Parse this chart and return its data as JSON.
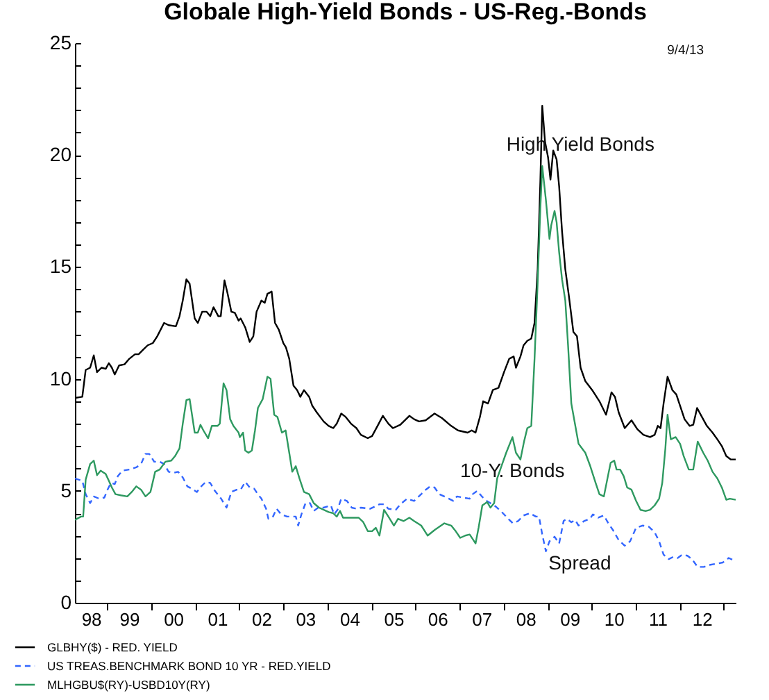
{
  "chart_data": {
    "type": "line",
    "title": "Globale High-Yield Bonds - US-Reg.-Bonds",
    "annotations": [
      "9/4/13",
      "High Yield Bonds",
      "10-Y. Bonds",
      "Spread"
    ],
    "xlim": [
      "1998-04-09",
      "2013-04-09"
    ],
    "ylim": [
      0,
      25
    ],
    "xticks": [
      {
        "value": "1998-08-20",
        "label": "98"
      },
      {
        "value": "1999-01-01",
        "label": null
      },
      {
        "value": "1999-07-02",
        "label": "99"
      },
      {
        "value": "2000-01-01",
        "label": null
      },
      {
        "value": "2000-07-02",
        "label": "00"
      },
      {
        "value": "2001-01-01",
        "label": null
      },
      {
        "value": "2001-07-02",
        "label": "01"
      },
      {
        "value": "2002-01-01",
        "label": null
      },
      {
        "value": "2002-07-02",
        "label": "02"
      },
      {
        "value": "2003-01-01",
        "label": null
      },
      {
        "value": "2003-07-02",
        "label": "03"
      },
      {
        "value": "2004-01-01",
        "label": null
      },
      {
        "value": "2004-07-02",
        "label": "04"
      },
      {
        "value": "2005-01-01",
        "label": null
      },
      {
        "value": "2005-07-02",
        "label": "05"
      },
      {
        "value": "2006-01-01",
        "label": null
      },
      {
        "value": "2006-07-02",
        "label": "06"
      },
      {
        "value": "2007-01-01",
        "label": null
      },
      {
        "value": "2007-07-02",
        "label": "07"
      },
      {
        "value": "2008-01-01",
        "label": null
      },
      {
        "value": "2008-07-02",
        "label": "08"
      },
      {
        "value": "2009-01-01",
        "label": null
      },
      {
        "value": "2009-07-02",
        "label": "09"
      },
      {
        "value": "2010-01-01",
        "label": null
      },
      {
        "value": "2010-07-02",
        "label": "10"
      },
      {
        "value": "2011-01-01",
        "label": null
      },
      {
        "value": "2011-07-02",
        "label": "11"
      },
      {
        "value": "2012-01-01",
        "label": null
      },
      {
        "value": "2012-07-02",
        "label": "12"
      },
      {
        "value": "2013-01-01",
        "label": null
      }
    ],
    "yticks": [
      0,
      {
        "value": 1,
        "label": null
      },
      {
        "value": 2,
        "label": null
      },
      {
        "value": 3,
        "label": null
      },
      {
        "value": 4,
        "label": null
      },
      5,
      {
        "value": 6,
        "label": null
      },
      {
        "value": 7,
        "label": null
      },
      {
        "value": 8,
        "label": null
      },
      {
        "value": 9,
        "label": null
      },
      10,
      {
        "value": 11,
        "label": null
      },
      {
        "value": 12,
        "label": null
      },
      {
        "value": 13,
        "label": null
      },
      {
        "value": 14,
        "label": null
      },
      15,
      {
        "value": 16,
        "label": null
      },
      {
        "value": 17,
        "label": null
      },
      {
        "value": 18,
        "label": null
      },
      {
        "value": 19,
        "label": null
      },
      20,
      {
        "value": 21,
        "label": null
      },
      {
        "value": 22,
        "label": null
      },
      {
        "value": 23,
        "label": null
      },
      {
        "value": 24,
        "label": null
      },
      25
    ],
    "legend": "bottom",
    "series": [
      {
        "name": "GLBHY($) - RED. YIELD",
        "color": "#000000",
        "x": [
          "1998-04-09",
          "1998-06-09",
          "1998-07-07",
          "1998-08-13",
          "1998-09-12",
          "1998-10-09",
          "1998-11-15",
          "1998-12-20",
          "1999-01-15",
          "1999-02-09",
          "1999-03-05",
          "1999-04-10",
          "1999-05-25",
          "1999-07-04",
          "1999-08-20",
          "1999-09-19",
          "1999-10-26",
          "1999-12-03",
          "2000-01-15",
          "2000-02-20",
          "2000-04-17",
          "2000-05-25",
          "2000-07-24",
          "2000-08-23",
          "2000-09-19",
          "2000-10-19",
          "2000-11-15",
          "2000-12-27",
          "2001-01-22",
          "2001-02-27",
          "2001-04-05",
          "2001-05-05",
          "2001-06-01",
          "2001-07-11",
          "2001-07-31",
          "2001-08-31",
          "2001-09-26",
          "2001-10-27",
          "2001-11-25",
          "2001-12-26",
          "2002-01-12",
          "2002-02-19",
          "2002-03-28",
          "2002-04-27",
          "2002-05-24",
          "2002-07-03",
          "2002-07-31",
          "2002-08-22",
          "2002-09-26",
          "2002-10-24",
          "2002-11-24",
          "2003-01-01",
          "2003-01-23",
          "2003-02-19",
          "2003-03-26",
          "2003-04-25",
          "2003-05-22",
          "2003-06-21",
          "2003-08-03",
          "2003-08-29",
          "2003-10-06",
          "2003-12-01",
          "2004-01-12",
          "2004-02-19",
          "2004-03-19",
          "2004-04-25",
          "2004-06-01",
          "2004-07-15",
          "2004-08-29",
          "2004-10-05",
          "2004-12-01",
          "2005-01-06",
          "2005-03-02",
          "2005-04-05",
          "2005-05-21",
          "2005-06-28",
          "2005-08-28",
          "2005-11-11",
          "2005-12-20",
          "2006-01-30",
          "2006-03-26",
          "2006-06-08",
          "2006-08-08",
          "2006-10-24",
          "2006-12-19",
          "2007-03-09",
          "2007-04-12",
          "2007-05-14",
          "2007-06-19",
          "2007-07-16",
          "2007-08-25",
          "2007-10-04",
          "2007-11-20",
          "2008-01-05",
          "2008-02-17",
          "2008-03-25",
          "2008-04-13",
          "2008-05-20",
          "2008-06-15",
          "2008-07-16",
          "2008-08-18",
          "2008-09-14",
          "2008-10-10",
          "2008-11-01",
          "2008-11-17",
          "2008-12-10",
          "2009-01-04",
          "2009-01-24",
          "2009-02-16",
          "2009-03-16",
          "2009-04-06",
          "2009-04-30",
          "2009-05-27",
          "2009-06-26",
          "2009-08-02",
          "2009-09-01",
          "2009-10-01",
          "2009-11-09",
          "2010-01-05",
          "2010-03-06",
          "2010-04-30",
          "2010-06-14",
          "2010-07-13",
          "2010-08-13",
          "2010-10-02",
          "2010-11-27",
          "2011-01-15",
          "2011-03-06",
          "2011-04-30",
          "2011-06-07",
          "2011-07-03",
          "2011-07-26",
          "2011-08-20",
          "2011-09-22",
          "2011-11-01",
          "2011-12-04",
          "2012-01-04",
          "2012-02-10",
          "2012-03-23",
          "2012-04-22",
          "2012-05-24",
          "2012-07-03",
          "2012-08-13",
          "2012-09-29",
          "2012-11-08",
          "2012-12-15",
          "2013-01-21",
          "2013-02-28",
          "2013-04-09"
        ],
        "values": [
          9.15,
          9.2,
          10.4,
          10.5,
          11.05,
          10.3,
          10.5,
          10.45,
          10.7,
          10.5,
          10.2,
          10.6,
          10.65,
          10.9,
          11.1,
          11.1,
          11.3,
          11.5,
          11.6,
          11.9,
          12.5,
          12.4,
          12.35,
          12.8,
          13.5,
          14.45,
          14.25,
          12.7,
          12.5,
          13.0,
          13.0,
          12.8,
          13.2,
          12.8,
          12.8,
          14.4,
          13.8,
          13.0,
          12.95,
          12.6,
          12.7,
          12.3,
          11.65,
          11.9,
          13.0,
          13.5,
          13.4,
          13.8,
          13.9,
          12.5,
          12.2,
          11.6,
          11.4,
          10.9,
          9.7,
          9.5,
          9.2,
          9.5,
          9.2,
          8.8,
          8.5,
          8.1,
          7.9,
          7.8,
          8.0,
          8.45,
          8.3,
          8.0,
          7.8,
          7.5,
          7.35,
          7.45,
          8.0,
          8.35,
          8.0,
          7.8,
          7.95,
          8.35,
          8.2,
          8.1,
          8.15,
          8.45,
          8.25,
          7.9,
          7.7,
          7.6,
          7.7,
          7.6,
          8.3,
          9.0,
          8.9,
          9.5,
          9.6,
          10.3,
          10.9,
          11.0,
          10.5,
          11.0,
          11.5,
          11.7,
          11.8,
          12.5,
          14.9,
          18.8,
          22.2,
          20.6,
          19.9,
          18.9,
          20.2,
          19.8,
          18.6,
          16.6,
          14.9,
          13.7,
          12.1,
          11.9,
          10.5,
          9.9,
          9.5,
          9.0,
          8.4,
          9.4,
          9.2,
          8.5,
          7.8,
          8.15,
          7.75,
          7.5,
          7.4,
          7.5,
          7.9,
          7.8,
          8.9,
          10.1,
          9.5,
          9.3,
          8.8,
          8.2,
          7.9,
          7.95,
          8.7,
          8.3,
          7.9,
          7.6,
          7.3,
          7.0,
          6.55,
          6.4,
          6.4
        ]
      },
      {
        "name": "US TREAS.BENCHMARK BOND 10 YR - RED.YIELD",
        "color": "#3366ff",
        "line_style": "dashed",
        "x": [
          "1998-04-09",
          "1998-06-09",
          "1998-07-07",
          "1998-08-13",
          "1998-09-12",
          "1998-10-27",
          "1998-12-09",
          "1999-01-04",
          "1999-02-01",
          "1999-03-05",
          "1999-03-30",
          "1999-05-07",
          "1999-07-04",
          "1999-08-31",
          "1999-10-09",
          "1999-11-15",
          "1999-12-16",
          "2000-01-26",
          "2000-03-11",
          "2000-04-17",
          "2000-05-25",
          "2000-07-04",
          "2000-08-11",
          "2000-09-19",
          "2000-10-27",
          "2000-12-02",
          "2001-01-14",
          "2001-02-19",
          "2001-03-29",
          "2001-05-05",
          "2001-06-12",
          "2001-08-03",
          "2001-09-17",
          "2001-10-27",
          "2001-12-10",
          "2002-01-12",
          "2002-02-19",
          "2002-03-28",
          "2002-05-04",
          "2002-06-04",
          "2002-07-03",
          "2002-08-11",
          "2002-08-30",
          "2002-10-07",
          "2002-11-06",
          "2002-12-13",
          "2003-02-01",
          "2003-04-14",
          "2003-05-04",
          "2003-05-31",
          "2003-07-04",
          "2003-08-10",
          "2003-09-10",
          "2003-10-17",
          "2003-12-01",
          "2004-01-30",
          "2004-02-26",
          "2004-03-25",
          "2004-04-25",
          "2004-06-11",
          "2004-07-21",
          "2004-08-29",
          "2004-10-05",
          "2004-12-20",
          "2005-01-30",
          "2005-03-08",
          "2005-04-15",
          "2005-05-21",
          "2005-07-21",
          "2005-08-28",
          "2005-10-24",
          "2005-12-20",
          "2006-02-17",
          "2006-03-27",
          "2006-05-03",
          "2006-06-08",
          "2006-07-17",
          "2006-08-28",
          "2006-10-05",
          "2006-11-11",
          "2006-12-11",
          "2007-01-29",
          "2007-03-26",
          "2007-04-20",
          "2007-05-28",
          "2007-07-05",
          "2007-08-14",
          "2007-09-14",
          "2007-10-28",
          "2007-12-18",
          "2008-02-09",
          "2008-03-18",
          "2008-04-30",
          "2008-06-15",
          "2008-08-07",
          "2008-09-25",
          "2008-10-21",
          "2008-11-17",
          "2008-12-17",
          "2009-01-16",
          "2009-02-27",
          "2009-04-06",
          "2009-05-13",
          "2009-06-07",
          "2009-07-16",
          "2009-08-17",
          "2009-09-14",
          "2009-10-29",
          "2009-12-17",
          "2010-01-11",
          "2010-02-24",
          "2010-04-12",
          "2010-05-19",
          "2010-06-26",
          "2010-08-13",
          "2010-10-02",
          "2010-11-16",
          "2011-01-04",
          "2011-02-27",
          "2011-04-19",
          "2011-06-07",
          "2011-07-14",
          "2011-08-20",
          "2011-10-02",
          "2011-11-08",
          "2011-12-15",
          "2012-01-22",
          "2012-03-05",
          "2012-04-11",
          "2012-05-29",
          "2012-07-20",
          "2012-09-12",
          "2012-11-08",
          "2012-12-23",
          "2013-02-10",
          "2013-04-09"
        ],
        "values": [
          5.55,
          5.45,
          4.85,
          4.45,
          4.75,
          4.65,
          4.7,
          5.05,
          5.35,
          5.3,
          5.65,
          5.9,
          5.95,
          6.05,
          6.2,
          6.65,
          6.65,
          6.3,
          6.3,
          6.2,
          5.85,
          5.8,
          5.85,
          5.6,
          5.2,
          5.1,
          4.95,
          5.2,
          5.4,
          5.35,
          5.0,
          4.65,
          4.25,
          4.95,
          5.05,
          5.05,
          5.4,
          5.15,
          5.1,
          4.85,
          4.65,
          4.2,
          3.75,
          3.85,
          4.2,
          3.95,
          3.85,
          3.85,
          3.45,
          3.95,
          4.45,
          4.45,
          4.1,
          4.25,
          4.25,
          4.35,
          3.95,
          4.15,
          4.65,
          4.55,
          4.25,
          4.2,
          4.25,
          4.2,
          4.3,
          4.4,
          4.4,
          4.2,
          4.15,
          4.4,
          4.65,
          4.55,
          4.85,
          5.05,
          5.2,
          5.15,
          4.85,
          4.75,
          4.65,
          4.55,
          4.75,
          4.7,
          4.65,
          4.85,
          5.0,
          4.75,
          4.55,
          4.45,
          4.3,
          4.05,
          3.75,
          3.55,
          3.65,
          3.9,
          4.0,
          3.85,
          3.85,
          3.05,
          2.3,
          2.75,
          2.95,
          2.65,
          3.65,
          3.75,
          3.6,
          3.7,
          3.45,
          3.65,
          3.75,
          3.95,
          3.8,
          3.9,
          3.55,
          3.25,
          2.8,
          2.55,
          2.75,
          3.35,
          3.45,
          3.4,
          3.15,
          2.75,
          2.15,
          1.95,
          2.05,
          2.0,
          2.15,
          2.1,
          1.95,
          1.6,
          1.6,
          1.7,
          1.75,
          1.8,
          2.0,
          1.85
        ]
      },
      {
        "name": "MLHGBU$(RY)-USBD10Y(RY)",
        "color": "#2e9960",
        "x": [
          "1998-04-09",
          "1998-05-29",
          "1998-06-16",
          "1998-07-07",
          "1998-08-13",
          "1998-09-12",
          "1998-10-09",
          "1998-11-08",
          "1998-12-20",
          "1999-01-15",
          "1999-02-09",
          "1999-03-11",
          "1999-04-24",
          "1999-06-17",
          "1999-07-24",
          "1999-08-31",
          "1999-10-09",
          "1999-11-15",
          "1999-12-26",
          "2000-02-03",
          "2000-03-11",
          "2000-04-28",
          "2000-06-16",
          "2000-07-17",
          "2000-08-23",
          "2000-09-19",
          "2000-10-19",
          "2000-11-15",
          "2000-12-27",
          "2001-01-22",
          "2001-02-13",
          "2001-03-09",
          "2001-04-17",
          "2001-05-18",
          "2001-07-04",
          "2001-07-23",
          "2001-08-23",
          "2001-09-17",
          "2001-10-17",
          "2001-11-13",
          "2001-12-26",
          "2002-01-05",
          "2002-02-01",
          "2002-02-19",
          "2002-03-18",
          "2002-04-15",
          "2002-05-11",
          "2002-06-04",
          "2002-07-14",
          "2002-08-22",
          "2002-09-17",
          "2002-10-17",
          "2002-11-13",
          "2002-12-20",
          "2003-01-20",
          "2003-02-19",
          "2003-03-16",
          "2003-04-14",
          "2003-05-15",
          "2003-06-21",
          "2003-08-03",
          "2003-09-10",
          "2003-10-24",
          "2004-01-12",
          "2004-02-19",
          "2004-03-19",
          "2004-04-15",
          "2004-05-10",
          "2004-06-11",
          "2004-07-29",
          "2004-09-17",
          "2004-10-25",
          "2004-12-01",
          "2005-01-06",
          "2005-02-06",
          "2005-03-08",
          "2005-04-15",
          "2005-05-21",
          "2005-07-06",
          "2005-08-09",
          "2005-09-25",
          "2005-11-11",
          "2005-12-20",
          "2006-02-17",
          "2006-04-12",
          "2006-06-08",
          "2006-08-28",
          "2006-10-24",
          "2006-11-30",
          "2007-01-07",
          "2007-02-17",
          "2007-03-26",
          "2007-04-20",
          "2007-05-14",
          "2007-06-08",
          "2007-07-09",
          "2007-08-18",
          "2007-09-14",
          "2007-10-15",
          "2007-11-09",
          "2007-12-18",
          "2008-01-23",
          "2008-03-15",
          "2008-04-13",
          "2008-05-20",
          "2008-06-19",
          "2008-07-16",
          "2008-08-18",
          "2008-09-14",
          "2008-10-10",
          "2008-11-01",
          "2008-11-17",
          "2008-12-17",
          "2009-01-16",
          "2009-01-30",
          "2009-02-27",
          "2009-03-16",
          "2009-04-06",
          "2009-04-30",
          "2009-05-27",
          "2009-06-19",
          "2009-07-16",
          "2009-09-14",
          "2009-11-09",
          "2009-12-17",
          "2010-02-03",
          "2010-03-06",
          "2010-04-12",
          "2010-05-19",
          "2010-06-07",
          "2010-07-07",
          "2010-07-26",
          "2010-08-25",
          "2010-09-24",
          "2010-10-22",
          "2010-11-27",
          "2011-01-04",
          "2011-02-10",
          "2011-03-24",
          "2011-04-30",
          "2011-06-07",
          "2011-07-14",
          "2011-08-09",
          "2011-09-04",
          "2011-09-22",
          "2011-10-19",
          "2011-11-28",
          "2012-01-04",
          "2012-02-03",
          "2012-03-16",
          "2012-04-22",
          "2012-05-29",
          "2012-07-14",
          "2012-08-20",
          "2012-09-29",
          "2012-11-08",
          "2012-12-15",
          "2013-01-21",
          "2013-02-20",
          "2013-04-09"
        ],
        "values": [
          3.7,
          3.85,
          3.85,
          5.5,
          6.2,
          6.35,
          5.7,
          5.9,
          5.75,
          5.45,
          5.15,
          4.85,
          4.8,
          4.75,
          4.95,
          5.2,
          5.05,
          4.75,
          4.95,
          5.85,
          5.95,
          6.3,
          6.35,
          6.55,
          6.9,
          8.0,
          9.05,
          9.1,
          7.6,
          7.6,
          7.95,
          7.7,
          7.35,
          7.9,
          7.9,
          8.0,
          9.8,
          9.5,
          8.2,
          7.9,
          7.6,
          7.4,
          7.6,
          6.8,
          6.7,
          6.8,
          7.7,
          8.7,
          9.1,
          10.1,
          10.0,
          8.4,
          8.3,
          7.6,
          7.7,
          6.7,
          5.85,
          6.1,
          5.55,
          4.95,
          4.85,
          4.45,
          4.25,
          4.05,
          4.0,
          3.85,
          4.1,
          3.8,
          3.8,
          3.8,
          3.8,
          3.6,
          3.2,
          3.2,
          3.35,
          3.0,
          4.15,
          3.85,
          3.45,
          3.75,
          3.65,
          3.8,
          3.65,
          3.45,
          3.0,
          3.25,
          3.55,
          3.45,
          3.2,
          2.9,
          3.0,
          3.05,
          2.85,
          2.65,
          3.35,
          4.35,
          4.5,
          4.25,
          4.45,
          5.55,
          6.15,
          6.7,
          7.4,
          6.7,
          6.4,
          7.2,
          7.8,
          7.9,
          10.9,
          14.3,
          17.6,
          19.5,
          18.0,
          16.25,
          16.85,
          17.5,
          17.0,
          15.65,
          14.45,
          13.5,
          11.5,
          8.9,
          7.1,
          6.7,
          6.15,
          5.35,
          4.85,
          4.75,
          5.75,
          6.25,
          6.35,
          5.95,
          5.95,
          5.65,
          5.15,
          5.05,
          4.55,
          4.15,
          4.1,
          4.15,
          4.35,
          4.65,
          5.35,
          6.9,
          8.4,
          7.3,
          7.4,
          7.1,
          6.55,
          5.95,
          5.95,
          7.2,
          6.7,
          6.35,
          5.85,
          5.55,
          5.15,
          4.6,
          4.65,
          4.6
        ]
      }
    ]
  }
}
